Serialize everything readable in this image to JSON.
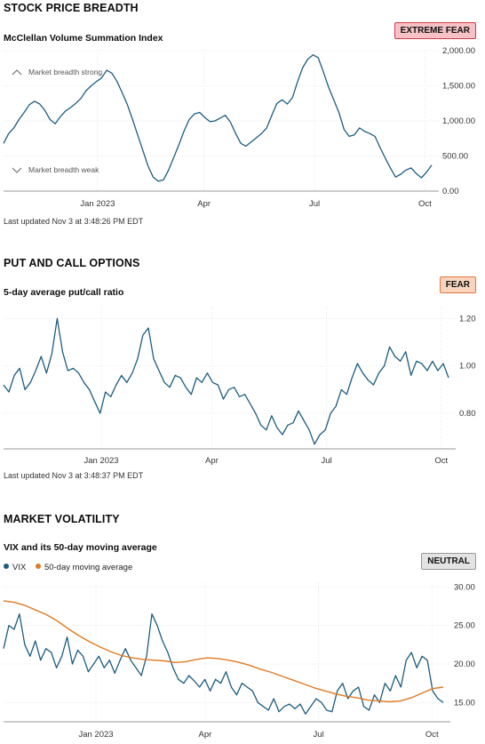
{
  "sections": [
    {
      "title": "STOCK PRICE BREADTH",
      "subtitle": "McClellan Volume Summation Index",
      "badge": "EXTREME FEAR",
      "updated": "Last updated Nov 3 at 3:48:26 PM EDT"
    },
    {
      "title": "PUT AND CALL OPTIONS",
      "subtitle": "5-day average put/call ratio",
      "badge": "FEAR",
      "updated": "Last updated Nov 3 at 3:48:37 PM EDT"
    },
    {
      "title": "MARKET VOLATILITY",
      "subtitle": "VIX and its 50-day moving average",
      "badge": "NEUTRAL",
      "legend": [
        "VIX",
        "50-day moving average"
      ]
    }
  ],
  "colors": {
    "series": "#1d5c80",
    "ma": "#e07a23",
    "grid": "#e6e6e6",
    "axis": "#444444"
  },
  "chart_data": [
    {
      "type": "line",
      "title": "McClellan Volume Summation Index",
      "x_ticks": [
        "Jan 2023",
        "Apr",
        "Jul",
        "Oct"
      ],
      "x_tick_pos": [
        0.23,
        0.49,
        0.76,
        1.03
      ],
      "y_ticks": [
        "2,000.00",
        "1,500.00",
        "1,000.00",
        "500.00",
        "0.00"
      ],
      "ylim": [
        0,
        2000
      ],
      "annotations": [
        "Market breadth strong",
        "Market breadth weak"
      ],
      "series": [
        {
          "values": [
            680,
            820,
            900,
            1020,
            1120,
            1230,
            1280,
            1240,
            1150,
            1020,
            960,
            1060,
            1140,
            1190,
            1250,
            1320,
            1430,
            1500,
            1560,
            1610,
            1720,
            1680,
            1560,
            1400,
            1230,
            1020,
            800,
            580,
            360,
            200,
            140,
            160,
            300,
            480,
            660,
            860,
            1020,
            1100,
            1120,
            1050,
            990,
            1000,
            1040,
            1080,
            980,
            820,
            680,
            640,
            700,
            760,
            820,
            900,
            1080,
            1250,
            1300,
            1240,
            1330,
            1560,
            1760,
            1880,
            1940,
            1900,
            1700,
            1480,
            1300,
            1120,
            880,
            780,
            800,
            900,
            850,
            820,
            780,
            620,
            470,
            330,
            200,
            240,
            300,
            330,
            250,
            190,
            270,
            370
          ]
        }
      ]
    },
    {
      "type": "line",
      "title": "5-day average put/call ratio",
      "x_ticks": [
        "Jan 2023",
        "Apr",
        "Jul",
        "Oct"
      ],
      "x_tick_pos": [
        0.23,
        0.49,
        0.76,
        1.03
      ],
      "y_ticks": [
        "1.20",
        "1.00",
        "0.80"
      ],
      "ylim": [
        0.65,
        1.25
      ],
      "series": [
        {
          "values": [
            0.92,
            0.89,
            0.96,
            0.99,
            0.9,
            0.93,
            0.98,
            1.04,
            0.97,
            1.05,
            1.2,
            1.06,
            0.98,
            0.99,
            0.97,
            0.93,
            0.9,
            0.85,
            0.8,
            0.89,
            0.87,
            0.92,
            0.96,
            0.93,
            0.97,
            1.03,
            1.13,
            1.16,
            1.03,
            0.98,
            0.93,
            0.91,
            0.96,
            0.95,
            0.91,
            0.88,
            0.95,
            0.93,
            0.97,
            0.93,
            0.92,
            0.86,
            0.9,
            0.91,
            0.87,
            0.88,
            0.84,
            0.8,
            0.75,
            0.73,
            0.79,
            0.74,
            0.71,
            0.75,
            0.76,
            0.81,
            0.77,
            0.73,
            0.67,
            0.71,
            0.73,
            0.8,
            0.83,
            0.9,
            0.88,
            0.95,
            1.01,
            0.97,
            0.94,
            0.92,
            0.97,
            1.0,
            1.08,
            1.04,
            1.02,
            1.06,
            0.96,
            1.02,
            1.01,
            0.98,
            1.02,
            0.98,
            1.01,
            0.95
          ]
        }
      ]
    },
    {
      "type": "line",
      "title": "VIX and its 50-day moving average",
      "x_ticks": [
        "Jan 2023",
        "Apr",
        "Jul",
        "Oct"
      ],
      "x_tick_pos": [
        0.22,
        0.48,
        0.75,
        1.02
      ],
      "y_ticks": [
        "30.00",
        "25.00",
        "20.00",
        "15.00"
      ],
      "ylim": [
        12.5,
        30.5
      ],
      "series": [
        {
          "name": "VIX",
          "values": [
            22.0,
            25.0,
            24.5,
            26.5,
            22.5,
            21.0,
            23.0,
            20.5,
            22.0,
            21.5,
            19.5,
            21.0,
            23.5,
            20.0,
            21.8,
            21.0,
            19.0,
            20.0,
            21.0,
            19.5,
            20.5,
            18.8,
            20.5,
            22.0,
            20.5,
            19.5,
            18.5,
            21.0,
            26.5,
            25.0,
            23.0,
            21.5,
            19.5,
            18.0,
            17.5,
            18.5,
            17.8,
            17.0,
            18.0,
            16.5,
            18.0,
            17.5,
            19.0,
            17.0,
            16.0,
            17.5,
            17.0,
            16.5,
            15.0,
            14.5,
            14.0,
            15.5,
            13.8,
            14.5,
            14.8,
            14.2,
            14.8,
            13.5,
            14.5,
            15.5,
            15.0,
            14.0,
            13.8,
            16.5,
            17.5,
            15.5,
            16.5,
            17.0,
            14.5,
            14.0,
            16.0,
            15.0,
            17.5,
            16.5,
            18.5,
            17.0,
            20.5,
            21.5,
            19.5,
            21.0,
            20.5,
            16.5,
            15.5,
            15.0
          ]
        },
        {
          "name": "50-day moving average",
          "values": [
            28.2,
            28.0,
            27.6,
            27.0,
            26.4,
            25.6,
            24.6,
            23.7,
            22.9,
            22.2,
            21.6,
            21.1,
            20.8,
            20.6,
            20.5,
            20.4,
            20.2,
            20.3,
            20.6,
            20.8,
            20.7,
            20.5,
            20.2,
            19.8,
            19.3,
            18.9,
            18.4,
            17.9,
            17.4,
            16.9,
            16.5,
            16.1,
            15.8,
            15.6,
            15.3,
            15.2,
            15.1,
            15.2,
            15.6,
            16.2,
            16.8,
            17.0
          ]
        }
      ]
    }
  ]
}
